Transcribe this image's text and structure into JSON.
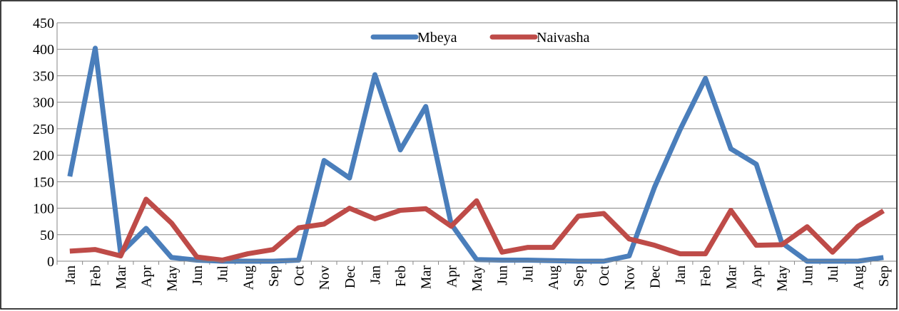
{
  "chart_data": {
    "type": "line",
    "categories": [
      "Jan",
      "Feb",
      "Mar",
      "Apr",
      "May",
      "Jun",
      "Jul",
      "Aug",
      "Sep",
      "Oct",
      "Nov",
      "Dec",
      "Jan",
      "Feb",
      "Mar",
      "Apr",
      "May",
      "Jun",
      "Jul",
      "Aug",
      "Sep",
      "Oct",
      "Nov",
      "Dec",
      "Jan",
      "Feb",
      "Mar",
      "Apr",
      "May",
      "Jun",
      "Jul",
      "Aug",
      "Sep"
    ],
    "series": [
      {
        "name": "Mbeya",
        "color": "#4a7ebb",
        "values": [
          160,
          402,
          15,
          62,
          7,
          2,
          0,
          0,
          0,
          2,
          190,
          157,
          352,
          210,
          292,
          70,
          3,
          2,
          2,
          1,
          0,
          0,
          10,
          140,
          248,
          345,
          212,
          183,
          35,
          0,
          0,
          0,
          7
        ]
      },
      {
        "name": "Naivasha",
        "color": "#be4b48",
        "values": [
          19,
          22,
          10,
          117,
          72,
          8,
          2,
          14,
          22,
          63,
          70,
          100,
          80,
          96,
          99,
          66,
          114,
          17,
          26,
          26,
          85,
          90,
          42,
          30,
          14,
          14,
          96,
          30,
          31,
          65,
          17,
          66,
          95
        ]
      }
    ],
    "ylim": [
      0,
      450
    ],
    "yticks": [
      0,
      50,
      100,
      150,
      200,
      250,
      300,
      350,
      400,
      450
    ],
    "grid": true,
    "legend": "top"
  }
}
